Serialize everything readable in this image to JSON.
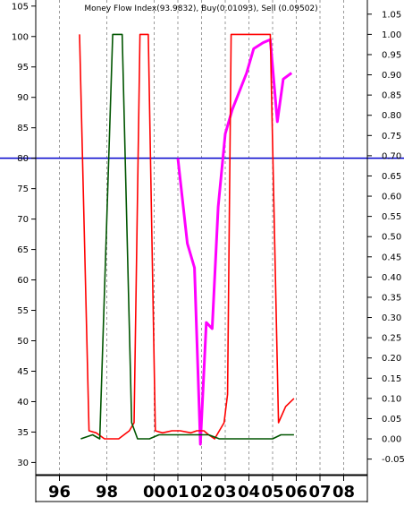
{
  "chart_data": {
    "type": "line",
    "title": "Money Flow Index(93.9832), Buy(0.01093), Sell (0.09502)",
    "x_tick_labels": [
      "96",
      "98",
      "00",
      "01",
      "02",
      "03",
      "04",
      "05",
      "06",
      "07",
      "08"
    ],
    "x_tick_positions": [
      1996,
      1998,
      2000,
      2001,
      2002,
      2003,
      2004,
      2005,
      2006,
      2007,
      2008
    ],
    "xlim": [
      1995.0,
      2009.0
    ],
    "left_axis": {
      "ticks": [
        105,
        100,
        95,
        90,
        85,
        80,
        75,
        70,
        65,
        60,
        55,
        50,
        45,
        40,
        35,
        30
      ],
      "ylim": [
        28.0,
        106.0
      ]
    },
    "right_axis": {
      "ticks": [
        "1.05",
        "1.00",
        "0.95",
        "0.90",
        "0.85",
        "0.80",
        "0.75",
        "0.70",
        "0.65",
        "0.60",
        "0.55",
        "0.50",
        "0.45",
        "0.40",
        "0.35",
        "0.30",
        "0.25",
        "0.20",
        "0.15",
        "0.10",
        "0.05",
        "0.00",
        "-0.05"
      ],
      "ylim": [
        -0.0885,
        1.085
      ]
    },
    "grid": "vertical dashed at year ticks",
    "reference_line": {
      "axis": "left",
      "value": 80,
      "color": "#0000cc"
    },
    "series": [
      {
        "axis": "left",
        "color": "#ff00ff",
        "points": [
          [
            2001.0,
            80
          ],
          [
            2001.4,
            66
          ],
          [
            2001.7,
            62
          ],
          [
            2001.95,
            33
          ],
          [
            2002.2,
            53
          ],
          [
            2002.45,
            52
          ],
          [
            2002.7,
            72
          ],
          [
            2003.0,
            84
          ],
          [
            2003.3,
            88
          ],
          [
            2003.6,
            91
          ],
          [
            2003.9,
            94
          ],
          [
            2004.2,
            98
          ],
          [
            2004.6,
            99
          ],
          [
            2004.9,
            99.5
          ],
          [
            2005.2,
            86
          ],
          [
            2005.45,
            93
          ],
          [
            2005.8,
            94
          ]
        ]
      },
      {
        "axis": "right",
        "color": "#ff0000",
        "points": [
          [
            1996.85,
            1.0
          ],
          [
            1997.25,
            0.02
          ],
          [
            1997.55,
            0.015
          ],
          [
            1997.9,
            0.0
          ],
          [
            1998.5,
            0.0
          ],
          [
            1998.95,
            0.02
          ],
          [
            1999.15,
            0.04
          ],
          [
            1999.4,
            1.0
          ],
          [
            1999.75,
            1.0
          ],
          [
            2000.05,
            0.02
          ],
          [
            2000.35,
            0.015
          ],
          [
            2000.75,
            0.02
          ],
          [
            2001.1,
            0.02
          ],
          [
            2001.55,
            0.015
          ],
          [
            2001.8,
            0.02
          ],
          [
            2002.1,
            0.02
          ],
          [
            2002.3,
            0.01
          ],
          [
            2002.55,
            0.0
          ],
          [
            2002.75,
            0.02
          ],
          [
            2002.95,
            0.04
          ],
          [
            2003.1,
            0.11
          ],
          [
            2003.25,
            1.0
          ],
          [
            2004.9,
            1.0
          ],
          [
            2005.25,
            0.04
          ],
          [
            2005.55,
            0.08
          ],
          [
            2005.9,
            0.1
          ]
        ]
      },
      {
        "axis": "right",
        "color": "#005500",
        "points": [
          [
            1996.9,
            0.0
          ],
          [
            1997.4,
            0.01
          ],
          [
            1997.7,
            0.0
          ],
          [
            1998.25,
            1.0
          ],
          [
            1998.65,
            1.0
          ],
          [
            1999.05,
            0.04
          ],
          [
            1999.3,
            0.0
          ],
          [
            1999.8,
            0.0
          ],
          [
            2000.2,
            0.01
          ],
          [
            2000.8,
            0.01
          ],
          [
            2001.3,
            0.01
          ],
          [
            2001.8,
            0.01
          ],
          [
            2002.3,
            0.01
          ],
          [
            2002.75,
            0.0
          ],
          [
            2003.25,
            0.0
          ],
          [
            2004.5,
            0.0
          ],
          [
            2005.0,
            0.0
          ],
          [
            2005.35,
            0.01
          ],
          [
            2005.9,
            0.01
          ]
        ]
      }
    ]
  }
}
